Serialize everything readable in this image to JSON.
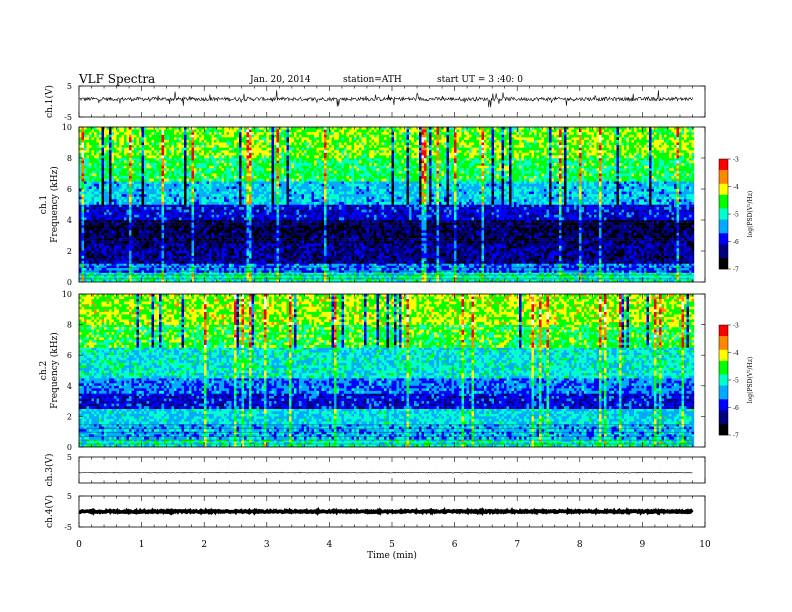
{
  "header": {
    "title": "VLF  Spectra",
    "date": "Jan. 20, 2014",
    "station": "station=ATH",
    "start": "start  UT =  3 :40: 0"
  },
  "chart_data": [
    {
      "type": "line",
      "panel": "ch1-waveform",
      "ylabel": "ch.1(V)",
      "ylim": [
        -5,
        5
      ],
      "yticks": [
        "5",
        "-5"
      ],
      "x_range_min": [
        0,
        9.8
      ],
      "mean_v": 0.8,
      "noise_amp_v": 0.6,
      "spike_amp_v": 2.5,
      "color": "#000000"
    },
    {
      "type": "heatmap",
      "panel": "ch1-spectrogram",
      "ylabel": "Frequency  (kHz)",
      "channel_label": "ch.1",
      "ylim": [
        0,
        10
      ],
      "yticks": [
        "0",
        "2",
        "4",
        "6",
        "8",
        "10"
      ],
      "x_range_min": [
        0,
        9.8
      ],
      "colorbar": {
        "label": "log(PSD(V²/Hz)",
        "range": [
          -7,
          -3
        ],
        "ticks": [
          "-3",
          "-4",
          "-5",
          "-6",
          "-7"
        ],
        "colors": [
          "#000000",
          "#000080",
          "#0000ff",
          "#00aaff",
          "#00ffcc",
          "#00ff00",
          "#ffff00",
          "#ff8800",
          "#ff0000",
          "#ffffff"
        ]
      },
      "bands": [
        {
          "f0": 0,
          "f1": 0.6,
          "psd": -5.0
        },
        {
          "f0": 0.6,
          "f1": 1.2,
          "psd": -5.6
        },
        {
          "f0": 1.2,
          "f1": 2.5,
          "psd": -6.3
        },
        {
          "f0": 2.5,
          "f1": 4.0,
          "psd": -6.5
        },
        {
          "f0": 4.0,
          "f1": 5.0,
          "psd": -6.0
        },
        {
          "f0": 5.0,
          "f1": 6.5,
          "psd": -5.3
        },
        {
          "f0": 6.5,
          "f1": 8.0,
          "psd": -4.7
        },
        {
          "f0": 8.0,
          "f1": 10.0,
          "psd": -4.4
        }
      ]
    },
    {
      "type": "heatmap",
      "panel": "ch2-spectrogram",
      "ylabel": "Frequency  (kHz)",
      "channel_label": "ch.2",
      "ylim": [
        0,
        10
      ],
      "yticks": [
        "0",
        "2",
        "4",
        "6",
        "8",
        "10"
      ],
      "x_range_min": [
        0,
        9.8
      ],
      "colorbar": {
        "label": "log(PSD(V²/Hz)",
        "range": [
          -7,
          -3
        ],
        "ticks": [
          "-3",
          "-4",
          "-5",
          "-6",
          "-7"
        ],
        "colors": [
          "#000000",
          "#000080",
          "#0000ff",
          "#00aaff",
          "#00ffcc",
          "#00ff00",
          "#ffff00",
          "#ff8800",
          "#ff0000",
          "#ffffff"
        ]
      },
      "bands": [
        {
          "f0": 0,
          "f1": 0.5,
          "psd": -5.0
        },
        {
          "f0": 0.5,
          "f1": 1.5,
          "psd": -5.4
        },
        {
          "f0": 1.5,
          "f1": 2.5,
          "psd": -5.2
        },
        {
          "f0": 2.5,
          "f1": 3.5,
          "psd": -6.0
        },
        {
          "f0": 3.5,
          "f1": 4.5,
          "psd": -5.6
        },
        {
          "f0": 4.5,
          "f1": 6.5,
          "psd": -5.1
        },
        {
          "f0": 6.5,
          "f1": 8.0,
          "psd": -4.6
        },
        {
          "f0": 8.0,
          "f1": 10.0,
          "psd": -4.3
        }
      ]
    },
    {
      "type": "line",
      "panel": "ch3-waveform",
      "ylabel": "ch.3(V)",
      "ylim": [
        -5,
        5
      ],
      "yticks": [
        "5"
      ],
      "x_range_min": [
        0,
        9.8
      ],
      "mean_v": -1.0,
      "noise_amp_v": 0.15,
      "color": "#000000"
    },
    {
      "type": "line",
      "panel": "ch4-waveform",
      "ylabel": "ch.4(V)",
      "ylim": [
        -5,
        5
      ],
      "yticks": [
        "5",
        "-5"
      ],
      "x_range_min": [
        0,
        9.8
      ],
      "mean_v": 0.0,
      "noise_amp_v": 0.25,
      "color": "#000000"
    }
  ],
  "xaxis": {
    "label": "Time  (min)",
    "range": [
      0,
      10
    ],
    "ticks": [
      "0",
      "1",
      "2",
      "3",
      "4",
      "5",
      "6",
      "7",
      "8",
      "9",
      "10"
    ]
  }
}
